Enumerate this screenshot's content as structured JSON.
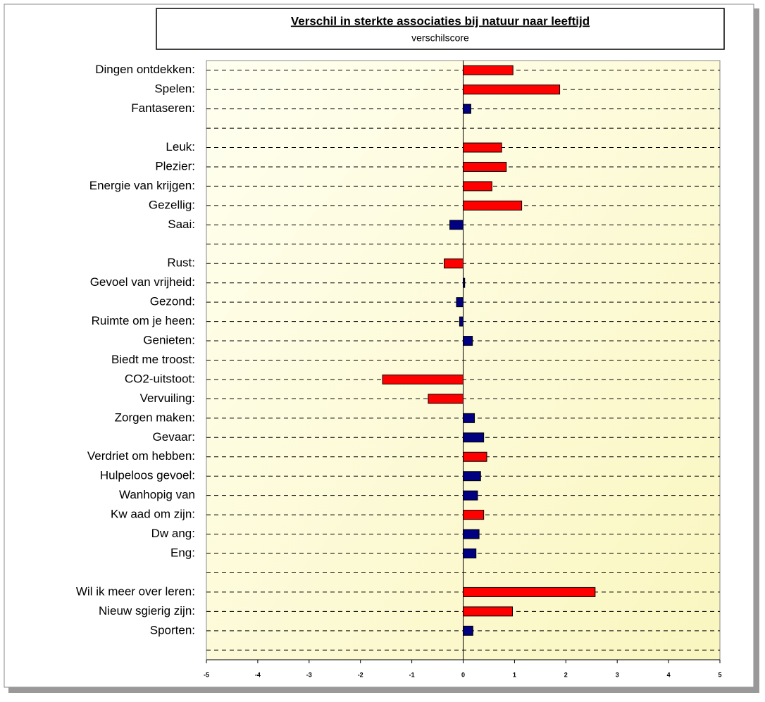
{
  "chart_data": {
    "type": "bar",
    "orientation": "horizontal",
    "title": "Verschil in sterkte associaties bij natuur naar leeftijd",
    "subtitle": "verschilscore",
    "categories": [
      "Dingen ontdekken:",
      "Spelen:",
      "Fantaseren:",
      null,
      "Leuk:",
      "Plezier:",
      "Energie van krijgen:",
      "Gezellig:",
      "Saai:",
      null,
      "Rust:",
      "Gevoel van vrijheid:",
      "Gezond:",
      "Ruimte om je heen:",
      "Genieten:",
      "Biedt me troost:",
      "CO2-uitstoot:",
      "Vervuiling:",
      "Zorgen maken:",
      "Gevaar:",
      "Verdriet om hebben:",
      "Hulpeloos gevoel:",
      "Wanhopig van",
      "Kw aad om zijn:",
      "Dw ang:",
      "Eng:",
      null,
      "Wil ik meer over leren:",
      "Nieuw sgierig zijn:",
      "Sporten:",
      null
    ],
    "values": [
      0.97,
      1.88,
      0.15,
      null,
      0.75,
      0.84,
      0.56,
      1.14,
      -0.26,
      null,
      -0.37,
      0.03,
      -0.13,
      -0.07,
      0.18,
      0,
      -1.57,
      -0.68,
      0.22,
      0.4,
      0.46,
      0.34,
      0.28,
      0.4,
      0.31,
      0.25,
      null,
      2.57,
      0.96,
      0.19,
      null
    ],
    "colors": [
      "#ff0000",
      "#ff0000",
      "#000080",
      null,
      "#ff0000",
      "#ff0000",
      "#ff0000",
      "#ff0000",
      "#000080",
      null,
      "#ff0000",
      "#000080",
      "#000080",
      "#000080",
      "#000080",
      "#000080",
      "#ff0000",
      "#ff0000",
      "#000080",
      "#000080",
      "#ff0000",
      "#000080",
      "#000080",
      "#ff0000",
      "#000080",
      "#000080",
      null,
      "#ff0000",
      "#ff0000",
      "#000080",
      null
    ],
    "xlim": [
      -5,
      5
    ],
    "xticks": [
      -5,
      -4,
      -3,
      -2,
      -1,
      0,
      1,
      2,
      3,
      4,
      5
    ],
    "grid": true
  }
}
